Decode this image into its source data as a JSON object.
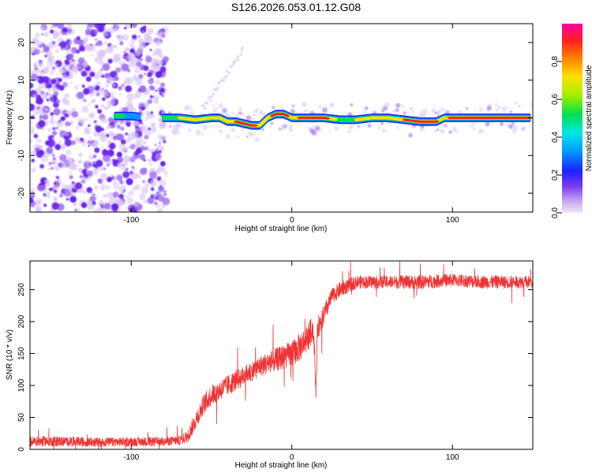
{
  "title": "S126.2026.053.01.12.G08",
  "chart_data": [
    {
      "type": "heatmap",
      "xlabel": "Height of straight line (km)",
      "ylabel": "Frequency (Hz)",
      "xlim": [
        -163,
        150
      ],
      "ylim": [
        -25,
        25
      ],
      "xticks": [
        -100,
        0,
        100
      ],
      "xtick_labels": [
        "-100",
        "0",
        "100"
      ],
      "yticks": [
        -20,
        -10,
        0,
        10,
        20
      ],
      "ytick_labels": [
        "-20",
        "-10",
        "0",
        "10",
        "20"
      ],
      "colorbar": {
        "label": "Normalized spectral amplitude",
        "range": [
          0,
          1
        ],
        "ticks": [
          0,
          0.2,
          0.4,
          0.6,
          0.8
        ],
        "tick_labels": [
          "0.0",
          "0.2",
          "0.4",
          "0.6",
          "0.8"
        ]
      },
      "ridge": {
        "x": [
          -110,
          -100,
          -90,
          -75,
          -70,
          -60,
          -50,
          -45,
          -40,
          -35,
          -30,
          -25,
          -20,
          -15,
          -10,
          -5,
          0,
          10,
          20,
          30,
          40,
          50,
          60,
          70,
          80,
          90,
          95,
          100,
          110,
          120,
          130,
          140,
          148
        ],
        "y": [
          0.5,
          0.5,
          0,
          0,
          0,
          -0.5,
          0,
          0,
          -1,
          -1,
          -1.5,
          -2,
          -2,
          0,
          1,
          1,
          0,
          0,
          0,
          -0.5,
          -0.5,
          0,
          0,
          -0.5,
          -1,
          -1,
          0,
          0,
          0,
          0,
          0,
          0,
          0
        ],
        "amplitude": [
          0.5,
          0.3,
          0.2,
          0.55,
          0.6,
          0.7,
          0.65,
          0.6,
          0.75,
          0.8,
          0.9,
          0.95,
          0.7,
          0.6,
          1.0,
          0.95,
          0.7,
          0.95,
          0.9,
          0.5,
          0.6,
          0.7,
          0.75,
          0.8,
          0.9,
          0.85,
          0.6,
          0.95,
          1.0,
          1.0,
          0.95,
          0.9,
          0.8
        ]
      },
      "noise_region": {
        "x": [
          -163,
          -78
        ],
        "amplitude": 0.2
      }
    },
    {
      "type": "line",
      "xlabel": "Height of straight line (km)",
      "ylabel": "SNR (10 * v/v)",
      "xlim": [
        -163,
        150
      ],
      "ylim": [
        0,
        295
      ],
      "xticks": [
        -100,
        0,
        100
      ],
      "xtick_labels": [
        "-100",
        "0",
        "100"
      ],
      "yticks": [
        0,
        50,
        100,
        150,
        200,
        250
      ],
      "ytick_labels": [
        "0",
        "50",
        "100",
        "150",
        "200",
        "250"
      ],
      "color": "#ee3333",
      "series": [
        {
          "name": "SNR",
          "x": [
            -163,
            -150,
            -120,
            -100,
            -80,
            -70,
            -65,
            -60,
            -55,
            -50,
            -40,
            -30,
            -20,
            -10,
            0,
            5,
            10,
            13,
            14,
            15,
            16,
            20,
            25,
            30,
            40,
            60,
            80,
            100,
            120,
            140,
            150
          ],
          "y": [
            12,
            13,
            11,
            12,
            12,
            14,
            20,
            45,
            70,
            85,
            100,
            115,
            130,
            140,
            150,
            160,
            175,
            190,
            160,
            85,
            190,
            210,
            240,
            250,
            262,
            262,
            262,
            265,
            262,
            262,
            262
          ],
          "noise": [
            8,
            8,
            7,
            7,
            7,
            7,
            10,
            14,
            16,
            16,
            16,
            16,
            16,
            18,
            20,
            22,
            22,
            20,
            15,
            8,
            18,
            16,
            12,
            12,
            10,
            10,
            11,
            10,
            10,
            10,
            10
          ]
        }
      ]
    }
  ]
}
